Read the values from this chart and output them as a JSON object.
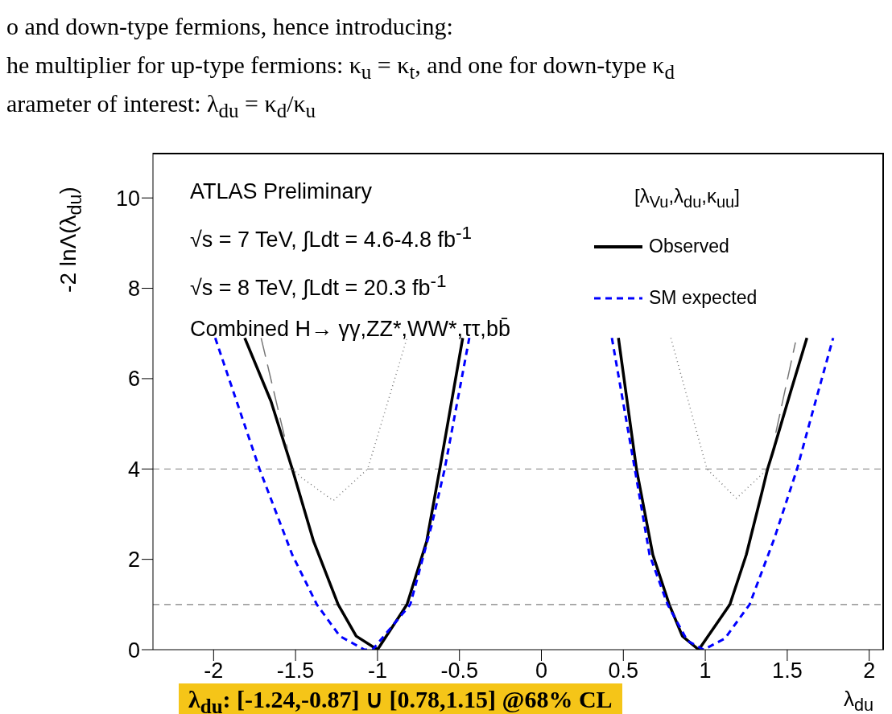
{
  "chart_data": {
    "type": "line",
    "xlabel": "λ$_{du}$",
    "ylabel": "-2 lnΛ(λ$_{du}$)",
    "legend_title": "[λ$_{Vu}$,λ$_{du}$,κ$_{uu}$]",
    "legend": "top right",
    "marker": "none",
    "xlim": [
      -2.37,
      2.09
    ],
    "xticks": [
      -2,
      -1.5,
      -1,
      -0.5,
      0,
      0.5,
      1,
      1.5,
      2
    ],
    "ylim": [
      0,
      11
    ],
    "yticks": [
      0,
      2,
      4,
      6,
      8,
      10
    ],
    "series": [
      {
        "name": "Observed",
        "color": "#000000",
        "line_style": "solid",
        "x": [
          -1.81,
          -1.65,
          -1.52,
          -1.39,
          -1.24,
          -1.13,
          -1.0,
          -0.82,
          -0.7,
          -0.62,
          -0.48,
          null,
          0.47,
          0.58,
          0.68,
          0.78,
          0.86,
          0.96,
          1.15,
          1.25,
          1.35,
          1.38,
          1.41,
          1.52,
          1.62
        ],
        "values": [
          6.9,
          5.5,
          4.0,
          2.4,
          1.0,
          0.3,
          0,
          1.0,
          2.4,
          4.0,
          6.9,
          null,
          6.9,
          4.0,
          2.1,
          1.0,
          0.3,
          0,
          1.0,
          2.1,
          3.55,
          4.0,
          4.35,
          5.7,
          6.9
        ]
      },
      {
        "name": "SM expected",
        "color": "#0000ff",
        "line_style": "dashed",
        "x": [
          -1.99,
          -1.72,
          -1.52,
          -1.37,
          -1.23,
          -1.08,
          -1.03,
          -0.8,
          -0.67,
          -0.59,
          -0.44,
          null,
          0.43,
          0.57,
          0.66,
          0.77,
          0.89,
          0.99,
          1.12,
          1.27,
          1.42,
          1.56,
          1.65,
          1.78
        ],
        "values": [
          6.9,
          4.0,
          2.1,
          1.0,
          0.3,
          0,
          0,
          1.0,
          2.75,
          4.0,
          6.9,
          null,
          6.9,
          4.0,
          2.1,
          1.0,
          0.2,
          0,
          0.25,
          1.0,
          2.45,
          4.0,
          5.2,
          6.9
        ]
      },
      {
        "color": "#777777",
        "line_style": "dotted",
        "x": [
          -1.52,
          -1.46,
          -1.27,
          -1.06,
          -0.82,
          null,
          0.79,
          1.01,
          1.19,
          1.38
        ],
        "values": [
          4.0,
          3.8,
          3.3,
          4.0,
          6.9,
          null,
          6.9,
          4.0,
          3.35,
          4.0
        ]
      },
      {
        "color": "#777777",
        "line_style": "longdash",
        "x": [
          -1.71,
          -1.55,
          null,
          1.43,
          1.55
        ],
        "values": [
          6.9,
          4.45,
          null,
          4.8,
          6.8
        ]
      }
    ],
    "ref_lines": [
      {
        "axis": "y",
        "value": 1,
        "color": "#808080",
        "line_style": "dashed"
      },
      {
        "axis": "y",
        "value": 4,
        "color": "#808080",
        "line_style": "dashed"
      }
    ],
    "annotations": [
      "o and down-type fermions, hence introducing:",
      "he multiplier for up-type fermions: κ$_{u}$ = κ$_{t}$, and one for down-type κ$_{d}$",
      "arameter of interest: λ$_{du}$ = κ$_{d}$/κ$_{u}$",
      "ATLAS Preliminary",
      "√s = 7 TeV, ∫Ldt = 4.6-4.8 fb$^{-1}$",
      "√s = 8 TeV, ∫Ldt = 20.3 fb$^{-1}$",
      "Combined H→ γγ,ZZ*,WW*,ττ,bb̄",
      "λ$_{du}$: [-1.24,-0.87] ∪ [0.78,1.15] @68% CL"
    ]
  }
}
